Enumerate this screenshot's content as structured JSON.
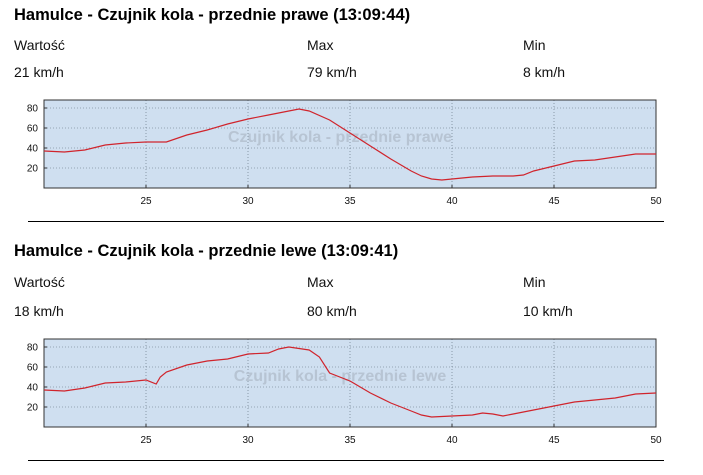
{
  "charts": [
    {
      "title": "Hamulce - Czujnik kola  - przednie prawe (13:09:44)",
      "stats": [
        {
          "label": "Wartość",
          "value": "21 km/h"
        },
        {
          "label": "Max",
          "value": "79 km/h"
        },
        {
          "label": "Min",
          "value": "8 km/h"
        }
      ],
      "watermark": "Czujnik kola  - przednie prawe"
    },
    {
      "title": "Hamulce - Czujnik kola - przednie lewe (13:09:41)",
      "stats": [
        {
          "label": "Wartość",
          "value": "18 km/h"
        },
        {
          "label": "Max",
          "value": "80 km/h"
        },
        {
          "label": "Min",
          "value": "10 km/h"
        }
      ],
      "watermark": "Czujnik kola  - przednie lewe"
    }
  ],
  "chart_data": [
    {
      "type": "line",
      "title": "",
      "xlabel": "",
      "ylabel": "",
      "xlim": [
        20,
        50
      ],
      "ylim": [
        0,
        88
      ],
      "xticks": [
        25,
        30,
        35,
        40,
        45,
        50
      ],
      "yticks": [
        20,
        40,
        60,
        80
      ],
      "grid": true,
      "line_color": "#d0242c",
      "plot_bg": "#cfdff0",
      "series": [
        {
          "x": [
            20,
            21,
            22,
            23,
            24,
            25,
            26,
            27,
            28,
            29,
            30,
            31,
            32,
            32.5,
            33,
            34,
            35,
            36,
            37,
            38,
            38.5,
            39,
            39.5,
            40,
            41,
            42,
            43,
            43.5,
            44,
            45,
            46,
            47,
            48,
            49,
            50
          ],
          "y": [
            37,
            36,
            38,
            43,
            45,
            46,
            46,
            53,
            58,
            64,
            69,
            73,
            77,
            79,
            77,
            68,
            55,
            42,
            29,
            17,
            12,
            9,
            8,
            9,
            11,
            12,
            12,
            13,
            17,
            22,
            27,
            28,
            31,
            34,
            34
          ]
        }
      ]
    },
    {
      "type": "line",
      "title": "",
      "xlabel": "",
      "ylabel": "",
      "xlim": [
        20,
        50
      ],
      "ylim": [
        0,
        88
      ],
      "xticks": [
        25,
        30,
        35,
        40,
        45,
        50
      ],
      "yticks": [
        20,
        40,
        60,
        80
      ],
      "grid": true,
      "line_color": "#d0242c",
      "plot_bg": "#cfdff0",
      "series": [
        {
          "x": [
            20,
            21,
            22,
            23,
            24,
            25,
            25.5,
            25.7,
            26,
            27,
            28,
            29,
            30,
            31,
            31.5,
            32,
            33,
            33.5,
            34,
            35,
            36,
            37,
            38,
            38.5,
            39,
            40,
            41,
            41.5,
            42,
            42.5,
            43,
            43.5,
            44,
            45,
            46,
            47,
            48,
            49,
            50
          ],
          "y": [
            37,
            36,
            39,
            44,
            45,
            47,
            43,
            50,
            55,
            62,
            66,
            68,
            73,
            74,
            78,
            80,
            77,
            70,
            54,
            46,
            34,
            24,
            16,
            12,
            10,
            11,
            12,
            14,
            13,
            11,
            13,
            15,
            17,
            21,
            25,
            27,
            29,
            33,
            34
          ]
        }
      ]
    }
  ]
}
